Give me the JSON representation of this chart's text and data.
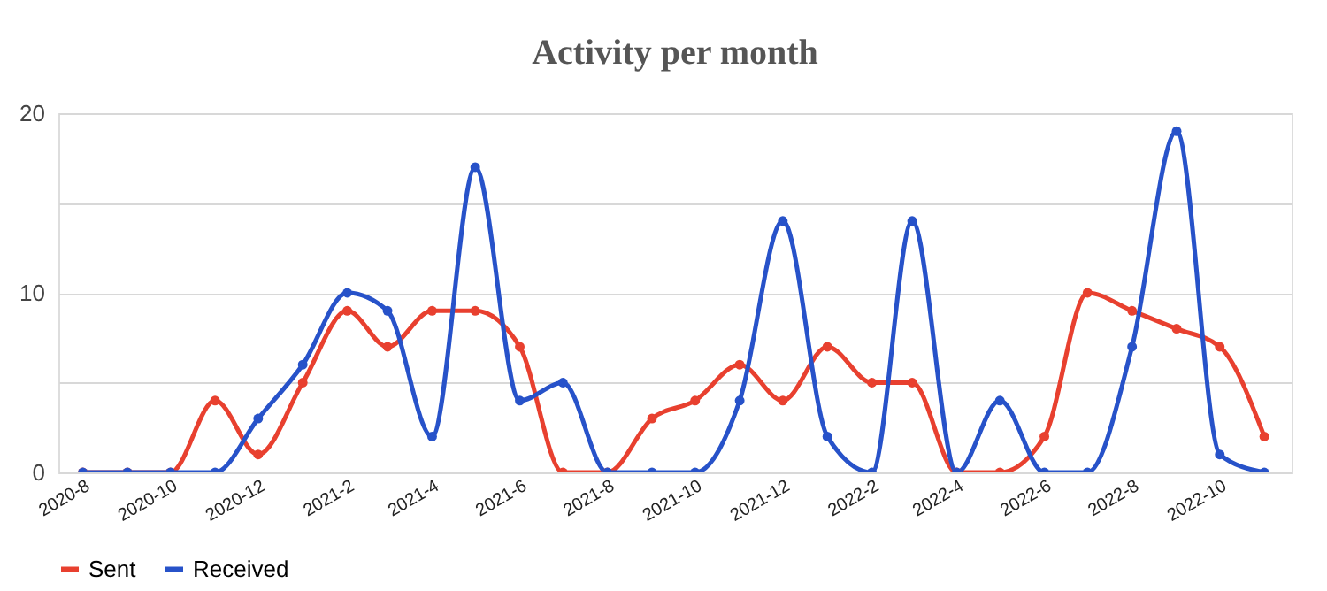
{
  "chart_data": {
    "type": "line",
    "title": "Activity per month",
    "x": [
      "2020-08",
      "2020-09",
      "2020-10",
      "2020-11",
      "2020-12",
      "2021-01",
      "2021-02",
      "2021-03",
      "2021-04",
      "2021-05",
      "2021-06",
      "2021-07",
      "2021-08",
      "2021-09",
      "2021-10",
      "2021-11",
      "2021-12",
      "2022-01",
      "2022-02",
      "2022-03",
      "2022-04",
      "2022-05",
      "2022-06",
      "2022-07",
      "2022-08",
      "2022-09",
      "2022-10",
      "2022-11"
    ],
    "series": [
      {
        "name": "Sent",
        "color": "#e8402f",
        "values": [
          0,
          0,
          0,
          4,
          1,
          5,
          9,
          7,
          9,
          9,
          7,
          0,
          0,
          3,
          4,
          6,
          4,
          7,
          5,
          5,
          0,
          0,
          2,
          10,
          9,
          8,
          7,
          2
        ]
      },
      {
        "name": "Received",
        "color": "#2752c9",
        "values": [
          0,
          0,
          0,
          0,
          3,
          6,
          10,
          9,
          2,
          17,
          4,
          5,
          0,
          0,
          0,
          4,
          14,
          2,
          0,
          14,
          0,
          4,
          0,
          0,
          7,
          19,
          1,
          0
        ]
      }
    ],
    "xlim": [
      "2020-07-15",
      "2022-11-20"
    ],
    "xticks": [
      {
        "value": "2020-08",
        "label": "2020-8"
      },
      {
        "value": "2020-10",
        "label": "2020-10"
      },
      {
        "value": "2020-12",
        "label": "2020-12"
      },
      {
        "value": "2021-02",
        "label": "2021-2"
      },
      {
        "value": "2021-04",
        "label": "2021-4"
      },
      {
        "value": "2021-06",
        "label": "2021-6"
      },
      {
        "value": "2021-08",
        "label": "2021-8"
      },
      {
        "value": "2021-10",
        "label": "2021-10"
      },
      {
        "value": "2021-12",
        "label": "2021-12"
      },
      {
        "value": "2022-02",
        "label": "2022-2"
      },
      {
        "value": "2022-04",
        "label": "2022-4"
      },
      {
        "value": "2022-06",
        "label": "2022-6"
      },
      {
        "value": "2022-08",
        "label": "2022-8"
      },
      {
        "value": "2022-10",
        "label": "2022-10"
      }
    ],
    "ylim": [
      0,
      20
    ],
    "yticks": [
      {
        "value": 0,
        "label": "0"
      },
      {
        "value": 5,
        "label": null
      },
      {
        "value": 10,
        "label": "10"
      },
      {
        "value": 15,
        "label": null
      },
      {
        "value": 20,
        "label": "20"
      }
    ],
    "grid": "y",
    "legend": "bottom",
    "marker": "circle",
    "line_style": "solid"
  }
}
